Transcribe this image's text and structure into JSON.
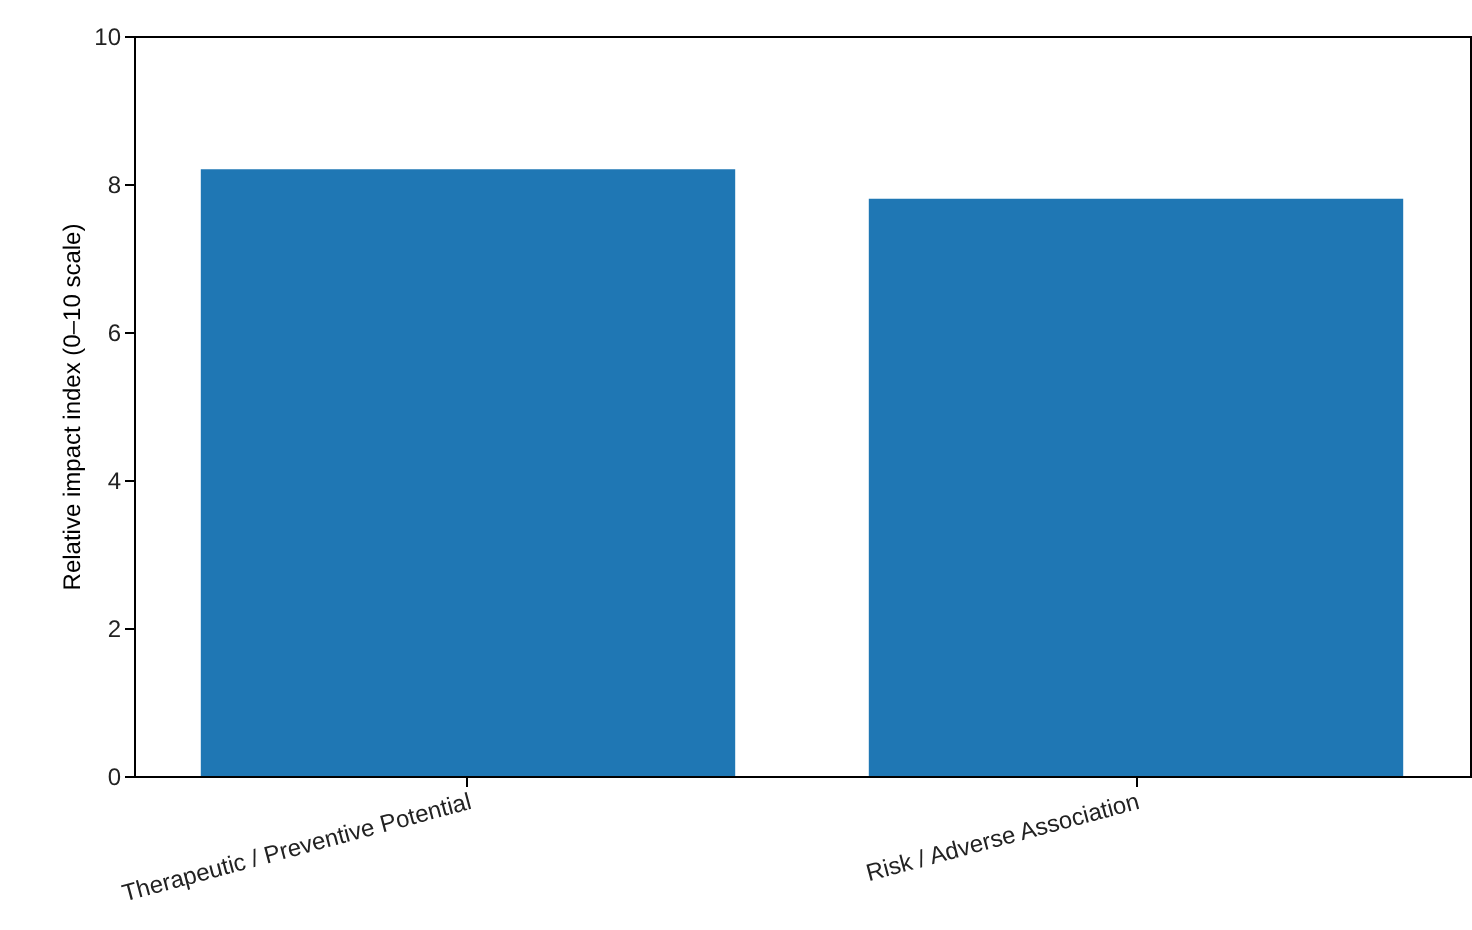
{
  "chart_data": {
    "type": "bar",
    "ylabel": "Relative impact index (0–10 scale)",
    "categories": [
      "Therapeutic / Preventive Potential",
      "Risk / Adverse Association"
    ],
    "values": [
      8.2,
      7.8
    ],
    "color": "#1f77b4",
    "ylim": [
      0,
      10
    ],
    "yticks": [
      0,
      2,
      4,
      6,
      8,
      10
    ],
    "grid": false
  }
}
